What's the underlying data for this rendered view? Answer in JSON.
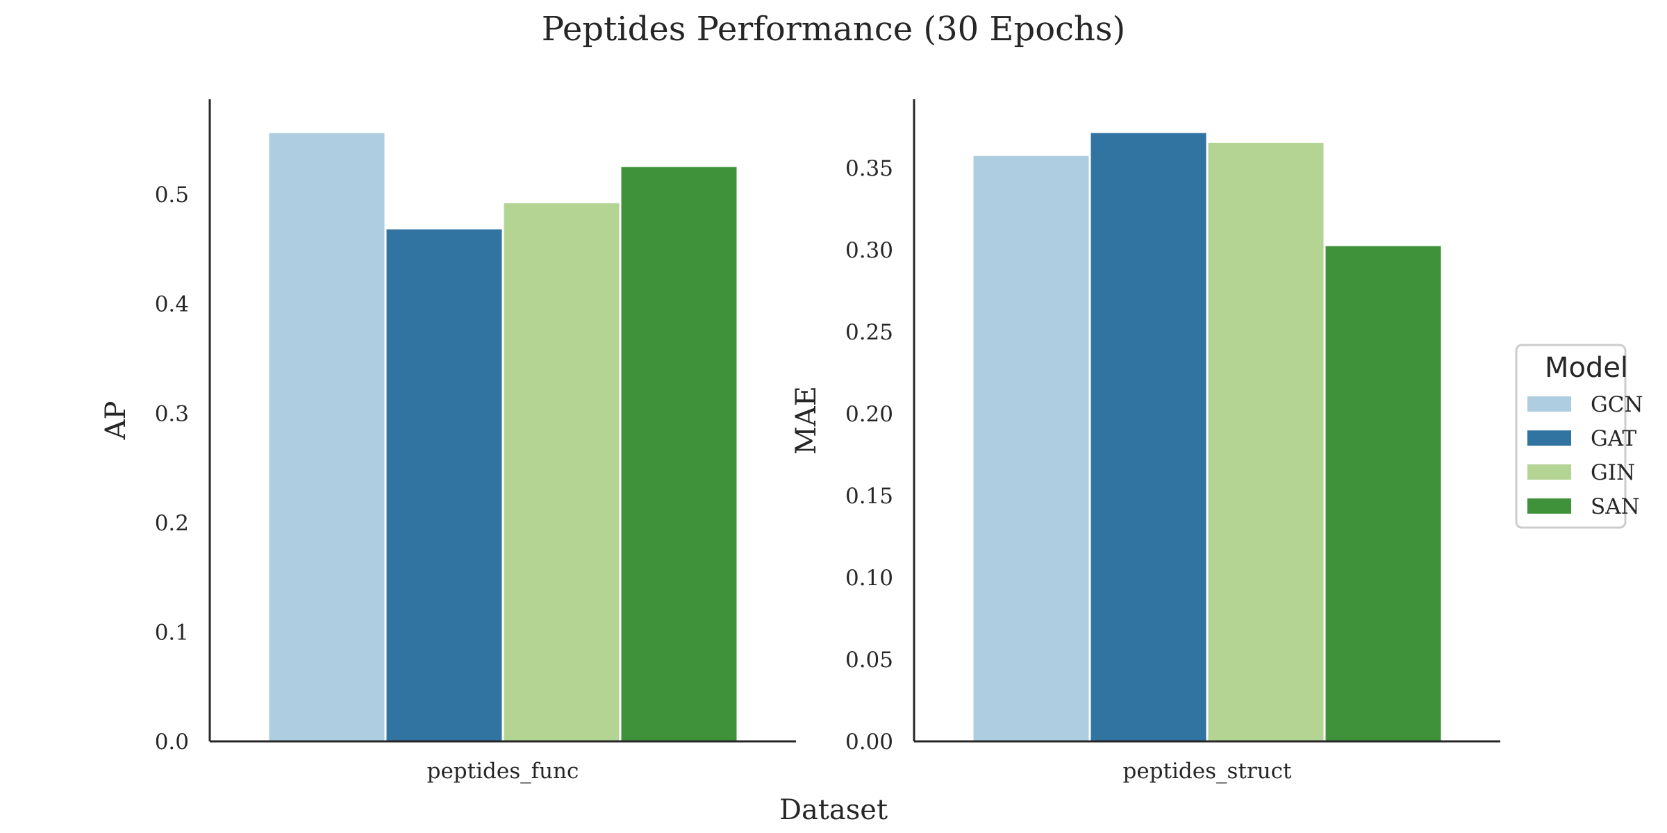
{
  "figure": {
    "title": "Peptides Performance (30 Epochs)",
    "xlabel": "Dataset"
  },
  "legend": {
    "title": "Model",
    "placement": "right-center"
  },
  "chart_data": [
    {
      "type": "bar",
      "categories": [
        "peptides_func"
      ],
      "series": [
        {
          "name": "GCN",
          "values": [
            0.557
          ],
          "color": "#aecde1"
        },
        {
          "name": "GAT",
          "values": [
            0.469
          ],
          "color": "#3174a1"
        },
        {
          "name": "GIN",
          "values": [
            0.493
          ],
          "color": "#b4d494"
        },
        {
          "name": "SAN",
          "values": [
            0.526
          ],
          "color": "#3f913a"
        }
      ],
      "ylabel": "AP",
      "ylim": [
        0,
        0.587
      ],
      "yticks": [
        "0.0",
        "0.1",
        "0.2",
        "0.3",
        "0.4",
        "0.5"
      ],
      "grid": false
    },
    {
      "type": "bar",
      "categories": [
        "peptides_struct"
      ],
      "series": [
        {
          "name": "GCN",
          "values": [
            0.358
          ],
          "color": "#aecde1"
        },
        {
          "name": "GAT",
          "values": [
            0.372
          ],
          "color": "#3174a1"
        },
        {
          "name": "GIN",
          "values": [
            0.366
          ],
          "color": "#b4d494"
        },
        {
          "name": "SAN",
          "values": [
            0.303
          ],
          "color": "#3f913a"
        }
      ],
      "ylabel": "MAE",
      "ylim": [
        0,
        0.392
      ],
      "yticks": [
        "0.00",
        "0.05",
        "0.10",
        "0.15",
        "0.20",
        "0.25",
        "0.30",
        "0.35"
      ],
      "grid": false
    }
  ]
}
